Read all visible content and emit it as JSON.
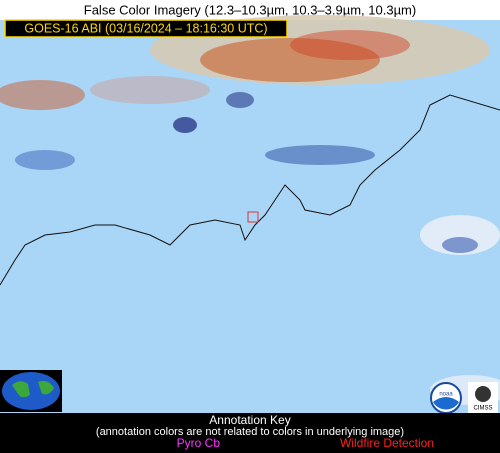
{
  "header": {
    "title": "False Color Imagery (12.3–10.3µm, 10.3–3.9µm, 10.3µm)",
    "timestamp": "GOES-16 ABI (03/16/2024 – 18:16:30 UTC)"
  },
  "footer": {
    "key_title": "Annotation Key",
    "key_note": "(annotation colors are not related to colors in underlying image)",
    "pyro_cb": "Pyro Cb",
    "wildfire": "Wildfire Detection"
  },
  "logos": {
    "noaa": "noaa",
    "cimss": "CIMSS"
  }
}
